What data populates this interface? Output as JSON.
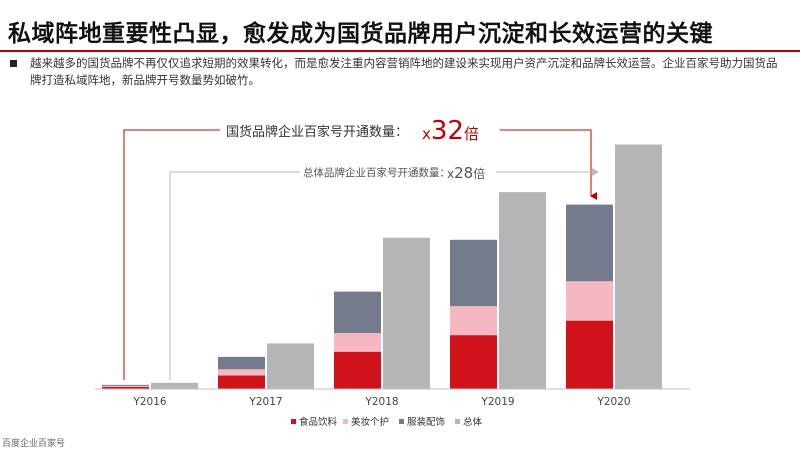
{
  "page": {
    "title": "私域阵地重要性凸显，愈发成为国货品牌用户沉淀和长效运营的关键",
    "summary": "越来越多的国货品牌不再仅仅追求短期的效果转化，而是愈发注重内容营销阵地的建设来实现用户资产沉淀和品牌长效运营。企业百家号助力国货品牌打造私域阵地，新品牌开号数量势如破竹。",
    "footnote": "百度企业百家号"
  },
  "chart_data": {
    "type": "bar",
    "stacked_series_note": "stacked",
    "categories": [
      "Y2016",
      "Y2017",
      "Y2018",
      "Y2019",
      "Y2020"
    ],
    "series": [
      {
        "name": "食品饮料",
        "color": "#d0121b",
        "values": [
          1,
          6.5,
          18,
          26,
          33
        ]
      },
      {
        "name": "美妆个护",
        "color": "#f5b8c2",
        "values": [
          0.5,
          3,
          9,
          14,
          19
        ]
      },
      {
        "name": "服装配饰",
        "color": "#747b8c",
        "values": [
          0.5,
          6,
          20,
          32,
          37
        ]
      },
      {
        "name": "总体",
        "color": "#b5b5b5",
        "values": [
          3,
          22,
          73,
          95,
          118
        ]
      }
    ],
    "ylim": [
      0,
      125
    ],
    "annotations": [
      {
        "label": "国货品牌企业百家号开通数量：",
        "multiplier_prefix": "x",
        "multiplier_value": "32",
        "multiplier_suffix": "倍",
        "color": "#c00000"
      },
      {
        "label": "总体品牌企业百家号开通数量：",
        "multiplier_prefix": "x",
        "multiplier_value": "28",
        "multiplier_suffix": "倍",
        "color": "#555555"
      }
    ],
    "legend_position": "bottom"
  }
}
